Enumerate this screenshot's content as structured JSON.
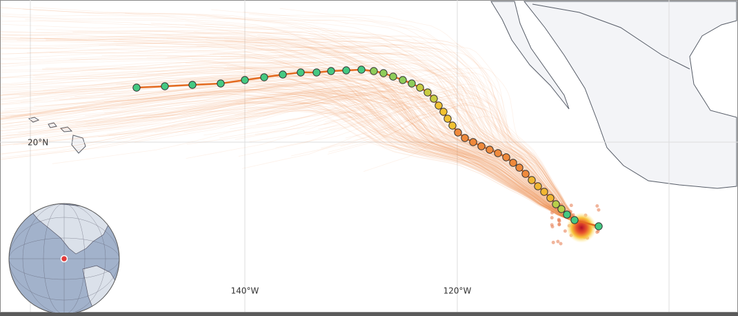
{
  "map": {
    "lat_labels": [
      "20°N"
    ],
    "lon_labels": [
      "140°W",
      "120°W"
    ]
  }
}
